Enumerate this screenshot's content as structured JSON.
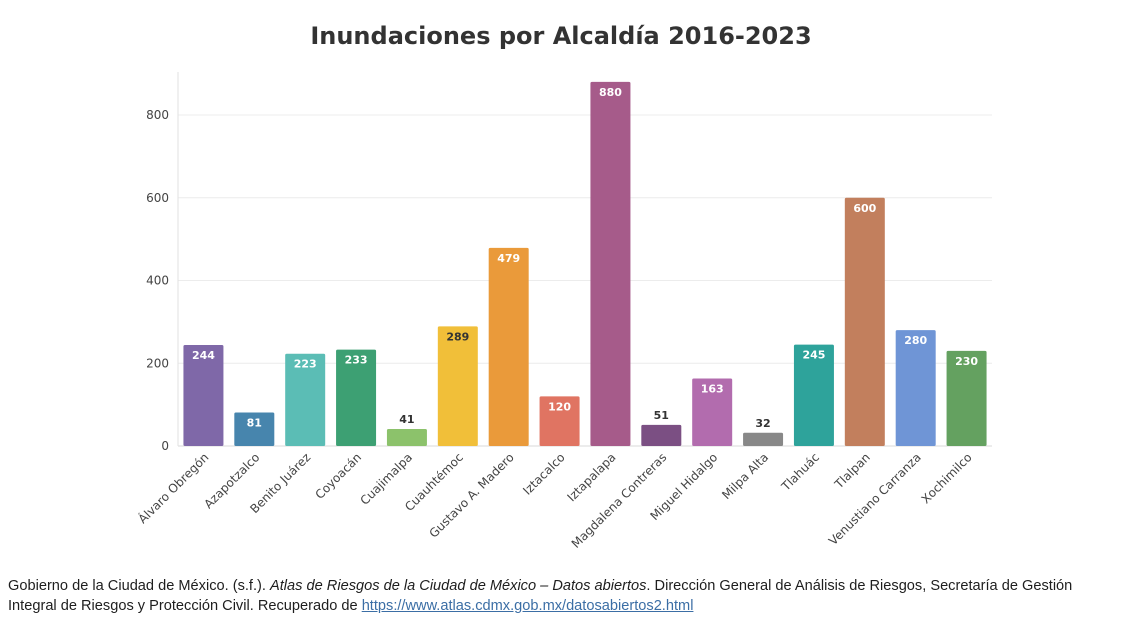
{
  "chart_data": {
    "type": "bar",
    "title": "Inundaciones por Alcaldía 2016-2023",
    "xlabel": "",
    "ylabel": "",
    "ylim": [
      0,
      900
    ],
    "yticks": [
      0,
      200,
      400,
      600,
      800
    ],
    "grid": true,
    "categories": [
      "Álvaro Obregón",
      "Azapotzalco",
      "Benito Juárez",
      "Coyoacán",
      "Cuajimalpa",
      "Cuauhtémoc",
      "Gustavo A. Madero",
      "Iztacalco",
      "Iztapalapa",
      "Magdalena Contreras",
      "Miguel Hidalgo",
      "Milpa Alta",
      "Tlahuác",
      "Tlalpan",
      "Venustiano Carranza",
      "Xochimilco"
    ],
    "values": [
      244,
      81,
      223,
      233,
      41,
      289,
      479,
      120,
      880,
      51,
      163,
      32,
      245,
      600,
      280,
      230
    ],
    "colors": [
      "#7f68a8",
      "#4785ad",
      "#5bbdb5",
      "#3da073",
      "#8cc26b",
      "#f1bf39",
      "#ea9a3a",
      "#e07462",
      "#a65b8a",
      "#7b4f83",
      "#b26cae",
      "#888888",
      "#2ea39b",
      "#c27f5d",
      "#6f95d6",
      "#64a160"
    ],
    "label_colors": [
      "#ffffff",
      "#ffffff",
      "#ffffff",
      "#ffffff",
      "#333333",
      "#333333",
      "#ffffff",
      "#ffffff",
      "#ffffff",
      "#ffffff",
      "#ffffff",
      "#333333",
      "#ffffff",
      "#ffffff",
      "#ffffff",
      "#ffffff"
    ]
  },
  "source": {
    "prefix": "Gobierno de la Ciudad de México. (s.f.). ",
    "title_italic": "Atlas de Riesgos de la Ciudad de México – Datos abiertos",
    "suffix": ". Dirección General de Análisis de Riesgos, Secretaría de Gestión Integral de Riesgos y Protección Civil. Recuperado de ",
    "link": "https://www.atlas.cdmx.gob.mx/datosabiertos2.html"
  }
}
